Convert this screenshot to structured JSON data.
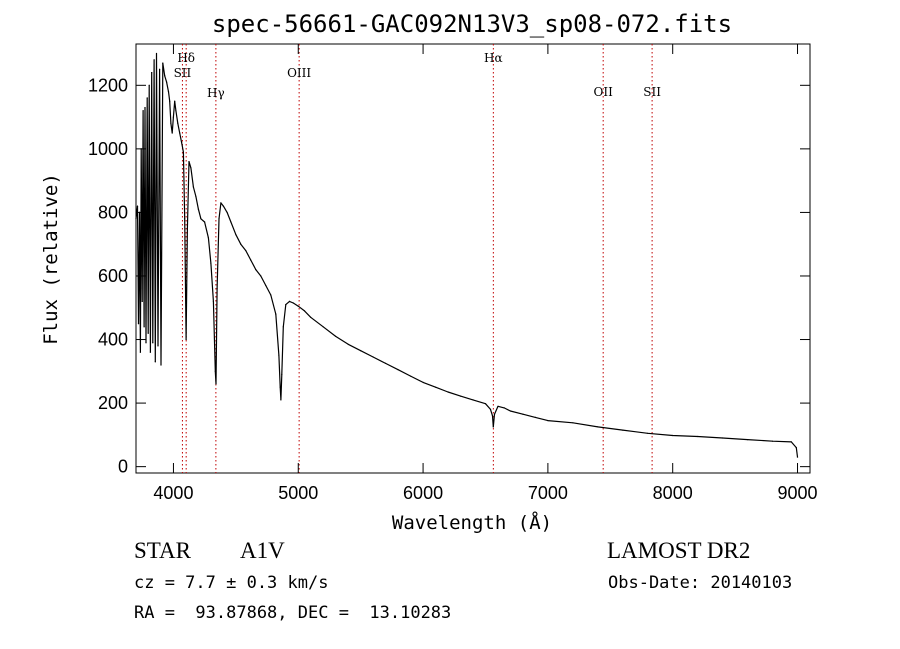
{
  "chart_data": {
    "type": "line",
    "title": "spec-56661-GAC092N13V3_sp08-072.fits",
    "xlabel": "Wavelength (Å)",
    "ylabel": "Flux (relative)",
    "xlim": [
      3700,
      9100
    ],
    "ylim": [
      -20,
      1330
    ],
    "xticks": [
      4000,
      5000,
      6000,
      7000,
      8000,
      9000
    ],
    "yticks": [
      0,
      200,
      400,
      600,
      800,
      1000,
      1200
    ],
    "grid": false,
    "series": [
      {
        "x": [
          3700,
          3712,
          3720,
          3728,
          3735,
          3742,
          3750,
          3757,
          3765,
          3772,
          3780,
          3790,
          3798,
          3806,
          3815,
          3826,
          3835,
          3845,
          3855,
          3864,
          3876,
          3889,
          3900,
          3915,
          3930,
          3945,
          3960,
          3970,
          3980,
          3990,
          4000,
          4010,
          4020,
          4035,
          4050,
          4065,
          4080,
          4090,
          4101,
          4112,
          4125,
          4140,
          4160,
          4180,
          4200,
          4220,
          4250,
          4280,
          4300,
          4320,
          4335,
          4341,
          4350,
          4365,
          4380,
          4400,
          4430,
          4460,
          4500,
          4540,
          4580,
          4620,
          4660,
          4700,
          4740,
          4780,
          4820,
          4845,
          4855,
          4861,
          4868,
          4880,
          4900,
          4930,
          4960,
          5000,
          5050,
          5100,
          5200,
          5300,
          5400,
          5500,
          5600,
          5700,
          5800,
          5900,
          6000,
          6100,
          6200,
          6300,
          6400,
          6500,
          6540,
          6556,
          6563,
          6572,
          6600,
          6650,
          6700,
          6800,
          6900,
          7000,
          7200,
          7400,
          7600,
          7800,
          8000,
          8200,
          8400,
          8600,
          8800,
          8950,
          8990,
          9000
        ],
        "y": [
          780,
          820,
          450,
          800,
          360,
          1000,
          520,
          1120,
          440,
          1130,
          390,
          1160,
          420,
          1200,
          360,
          1240,
          390,
          1280,
          330,
          1300,
          380,
          1250,
          320,
          1270,
          1230,
          1210,
          1180,
          1150,
          1080,
          1050,
          1100,
          1150,
          1120,
          1080,
          1050,
          1020,
          990,
          780,
          400,
          750,
          960,
          940,
          880,
          850,
          810,
          780,
          770,
          720,
          640,
          520,
          300,
          260,
          560,
          780,
          830,
          820,
          800,
          770,
          730,
          700,
          680,
          650,
          620,
          600,
          570,
          540,
          480,
          350,
          250,
          210,
          290,
          440,
          510,
          520,
          515,
          505,
          490,
          470,
          440,
          410,
          385,
          365,
          345,
          325,
          305,
          285,
          265,
          250,
          235,
          222,
          210,
          198,
          180,
          160,
          125,
          165,
          190,
          185,
          175,
          165,
          155,
          145,
          138,
          125,
          115,
          105,
          98,
          95,
          90,
          85,
          80,
          78,
          60,
          30
        ]
      }
    ],
    "annotations": [
      {
        "label": "Hδ",
        "x": 4102
      },
      {
        "label": "SII",
        "x": 4072
      },
      {
        "label": "Hγ",
        "x": 4340
      },
      {
        "label": "OIII",
        "x": 5007
      },
      {
        "label": "Hα",
        "x": 6563
      },
      {
        "label": "OII",
        "x": 7443
      },
      {
        "label": "SII",
        "x": 7835
      }
    ],
    "line_color": "#000000",
    "marker_color": "#c00000"
  },
  "info": {
    "object_class": "STAR",
    "subclass": "A1V",
    "survey": "LAMOST DR2",
    "cz": "cz = 7.7 ± 0.3 km/s",
    "obs_date": "Obs-Date: 20140103",
    "coords": "RA =  93.87868, DEC =  13.10283"
  }
}
